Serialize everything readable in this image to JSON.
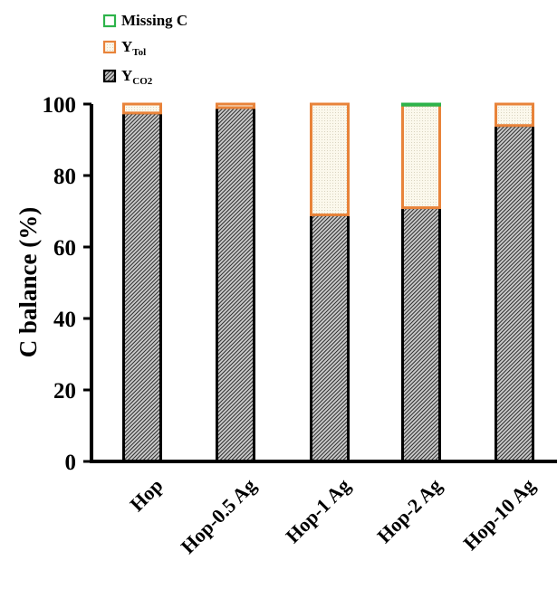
{
  "chart_data": {
    "type": "bar",
    "stacked": true,
    "ylabel": "C balance  (%)",
    "ylim": [
      0,
      100
    ],
    "yticks": [
      0,
      20,
      40,
      60,
      80,
      100
    ],
    "categories": [
      "Hop",
      "Hop-0.5 Ag",
      "Hop-1 Ag",
      "Hop-2 Ag",
      "Hop-10 Ag"
    ],
    "legend_position": "top-left",
    "series": [
      {
        "key": "co2",
        "name_main": "Y",
        "name_sub": "CO2",
        "color": "#222222",
        "pattern": "diagonal-hatch",
        "values": [
          97.5,
          99,
          69,
          71,
          94
        ]
      },
      {
        "key": "tol",
        "name_main": "Y",
        "name_sub": "Tol",
        "color": "#e8833a",
        "pattern": "dots",
        "values": [
          2.5,
          1,
          31,
          28.7,
          6
        ]
      },
      {
        "key": "missing",
        "name_main": "Missing  C",
        "name_sub": "",
        "color": "#2db34a",
        "pattern": "none",
        "values": [
          0,
          0,
          0,
          0.3,
          0
        ]
      }
    ]
  }
}
